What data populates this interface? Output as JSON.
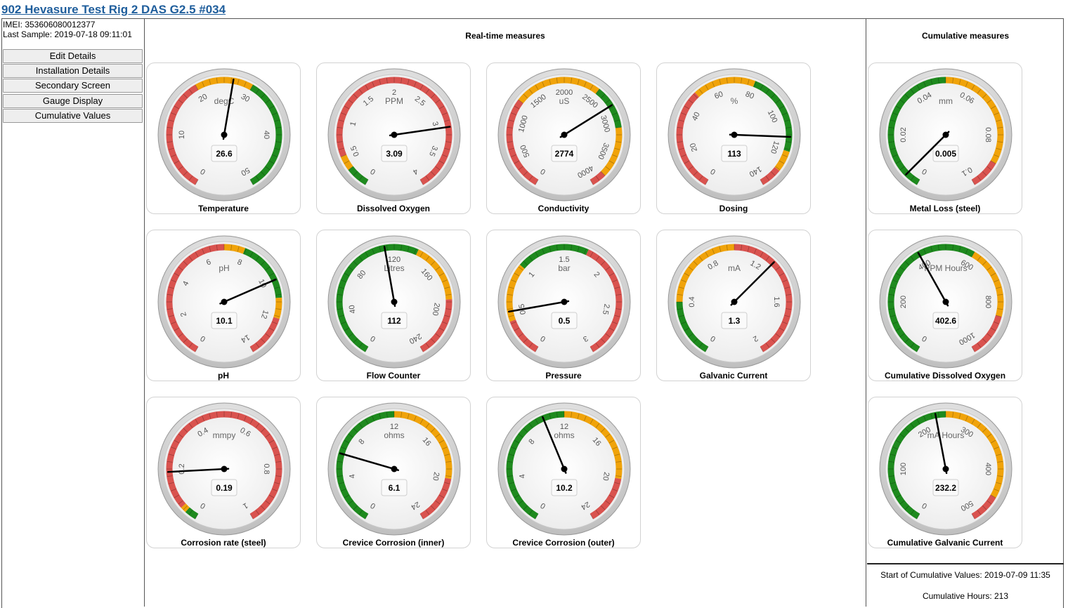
{
  "header": {
    "title": "902 Hevasure Test Rig 2 DAS G2.5 #034"
  },
  "device": {
    "imei": "IMEI: 353606080012377",
    "last_sample": "Last Sample: 2019-07-18 09:11:01"
  },
  "sidebar": {
    "buttons": [
      "Edit Details",
      "Installation Details",
      "Secondary Screen",
      "Gauge Display",
      "Cumulative Values"
    ]
  },
  "sections": {
    "realtime_title": "Real-time measures",
    "cumulative_title": "Cumulative measures"
  },
  "colors": {
    "red": "#d9534f",
    "orange": "#f0a30a",
    "green": "#1e8a1e",
    "title_link": "#1f5e9c"
  },
  "gauges": [
    {
      "name": "Temperature",
      "unit": "degC",
      "min": 0,
      "max": 50,
      "ticks": [
        0,
        10,
        20,
        30,
        40,
        50
      ],
      "value": 26.6,
      "display": "26.6",
      "bands": [
        {
          "from": 0,
          "to": 20,
          "color": "red"
        },
        {
          "from": 20,
          "to": 30,
          "color": "orange"
        },
        {
          "from": 30,
          "to": 50,
          "color": "green"
        }
      ]
    },
    {
      "name": "Dissolved Oxygen",
      "unit": "PPM",
      "min": 0,
      "max": 4,
      "ticks": [
        "0",
        "0.5",
        "1",
        "1.5",
        "2",
        "2.5",
        "3",
        "3.5",
        "4"
      ],
      "value": 3.09,
      "display": "3.09",
      "bands": [
        {
          "from": 0,
          "to": 0.3,
          "color": "green"
        },
        {
          "from": 0.3,
          "to": 0.5,
          "color": "orange"
        },
        {
          "from": 0.5,
          "to": 4,
          "color": "red"
        }
      ]
    },
    {
      "name": "Conductivity",
      "unit": "uS",
      "min": 0,
      "max": 4000,
      "ticks": [
        "0",
        "500",
        "1000",
        "1500",
        "2000",
        "2500",
        "3000",
        "3500",
        "4000"
      ],
      "value": 2774,
      "display": "2774",
      "bands": [
        {
          "from": 0,
          "to": 1300,
          "color": "red"
        },
        {
          "from": 1300,
          "to": 2500,
          "color": "orange"
        },
        {
          "from": 2500,
          "to": 3100,
          "color": "green"
        },
        {
          "from": 3100,
          "to": 3800,
          "color": "orange"
        },
        {
          "from": 3800,
          "to": 4000,
          "color": "red"
        }
      ]
    },
    {
      "name": "Dosing",
      "unit": "%",
      "min": 0,
      "max": 140,
      "ticks": [
        "0",
        "20",
        "40",
        "60",
        "80",
        "100",
        "120",
        "140"
      ],
      "value": 113,
      "display": "113",
      "bands": [
        {
          "from": 0,
          "to": 50,
          "color": "red"
        },
        {
          "from": 50,
          "to": 80,
          "color": "orange"
        },
        {
          "from": 80,
          "to": 120,
          "color": "green"
        },
        {
          "from": 120,
          "to": 130,
          "color": "orange"
        },
        {
          "from": 130,
          "to": 140,
          "color": "red"
        }
      ]
    },
    {
      "name": "Metal Loss (steel)",
      "unit": "mm",
      "min": 0,
      "max": 0.1,
      "ticks": [
        "0",
        "0.02",
        "0.04",
        "0.06",
        "0.08",
        "0.1"
      ],
      "value": 0.005,
      "display": "0.005",
      "bands": [
        {
          "from": 0,
          "to": 0.05,
          "color": "green"
        },
        {
          "from": 0.05,
          "to": 0.09,
          "color": "orange"
        },
        {
          "from": 0.09,
          "to": 0.1,
          "color": "red"
        }
      ]
    },
    {
      "name": "pH",
      "unit": "pH",
      "min": 0,
      "max": 14,
      "ticks": [
        "0",
        "2",
        "4",
        "6",
        "8",
        "10",
        "12",
        "14"
      ],
      "value": 10.1,
      "display": "10.1",
      "bands": [
        {
          "from": 0,
          "to": 7,
          "color": "red"
        },
        {
          "from": 7,
          "to": 8,
          "color": "orange"
        },
        {
          "from": 8,
          "to": 11,
          "color": "green"
        },
        {
          "from": 11,
          "to": 12,
          "color": "orange"
        },
        {
          "from": 12,
          "to": 14,
          "color": "red"
        }
      ]
    },
    {
      "name": "Flow Counter",
      "unit": "Litres",
      "min": 0,
      "max": 240,
      "ticks": [
        "0",
        "40",
        "80",
        "120",
        "160",
        "200",
        "240"
      ],
      "value": 112,
      "display": "112",
      "bands": [
        {
          "from": 0,
          "to": 140,
          "color": "green"
        },
        {
          "from": 140,
          "to": 190,
          "color": "orange"
        },
        {
          "from": 190,
          "to": 240,
          "color": "red"
        }
      ]
    },
    {
      "name": "Pressure",
      "unit": "bar",
      "min": 0,
      "max": 3,
      "ticks": [
        "0",
        "0.5",
        "1",
        "1.5",
        "2",
        "2.5",
        "3"
      ],
      "value": 0.5,
      "display": "0.5",
      "bands": [
        {
          "from": 0,
          "to": 0.4,
          "color": "red"
        },
        {
          "from": 0.4,
          "to": 1,
          "color": "orange"
        },
        {
          "from": 1,
          "to": 1.75,
          "color": "green"
        },
        {
          "from": 1.75,
          "to": 3,
          "color": "red"
        }
      ]
    },
    {
      "name": "Galvanic Current",
      "unit": "mA",
      "min": 0,
      "max": 2,
      "ticks": [
        "0",
        "0.4",
        "0.8",
        "1.2",
        "1.6",
        "2"
      ],
      "value": 1.3,
      "display": "1.3",
      "bands": [
        {
          "from": 0,
          "to": 0.4,
          "color": "green"
        },
        {
          "from": 0.4,
          "to": 1,
          "color": "orange"
        },
        {
          "from": 1,
          "to": 2,
          "color": "red"
        }
      ]
    },
    {
      "name": "Cumulative Dissolved Oxygen",
      "unit": "PPM Hours",
      "min": 0,
      "max": 1000,
      "ticks": [
        "0",
        "200",
        "400",
        "600",
        "800",
        "1000"
      ],
      "value": 402.6,
      "display": "402.6",
      "bands": [
        {
          "from": 0,
          "to": 600,
          "color": "green"
        },
        {
          "from": 600,
          "to": 850,
          "color": "orange"
        },
        {
          "from": 850,
          "to": 1000,
          "color": "red"
        }
      ]
    },
    {
      "name": "Corrosion rate (steel)",
      "unit": "mmpy",
      "min": 0,
      "max": 1,
      "ticks": [
        "0",
        "0.2",
        "0.4",
        "0.6",
        "0.8",
        "1"
      ],
      "value": 0.19,
      "display": "0.19",
      "bands": [
        {
          "from": 0,
          "to": 0.04,
          "color": "green"
        },
        {
          "from": 0.04,
          "to": 0.06,
          "color": "orange"
        },
        {
          "from": 0.06,
          "to": 1,
          "color": "red"
        }
      ]
    },
    {
      "name": "Crevice Corrosion (inner)",
      "unit": "ohms",
      "min": 0,
      "max": 24,
      "ticks": [
        "0",
        "4",
        "8",
        "12",
        "16",
        "20",
        "24"
      ],
      "value": 6.1,
      "display": "6.1",
      "bands": [
        {
          "from": 0,
          "to": 12,
          "color": "green"
        },
        {
          "from": 12,
          "to": 20,
          "color": "orange"
        },
        {
          "from": 20,
          "to": 24,
          "color": "red"
        }
      ]
    },
    {
      "name": "Crevice Corrosion (outer)",
      "unit": "ohms",
      "min": 0,
      "max": 24,
      "ticks": [
        "0",
        "4",
        "8",
        "12",
        "16",
        "20",
        "24"
      ],
      "value": 10.2,
      "display": "10.2",
      "bands": [
        {
          "from": 0,
          "to": 12,
          "color": "green"
        },
        {
          "from": 12,
          "to": 20,
          "color": "orange"
        },
        {
          "from": 20,
          "to": 24,
          "color": "red"
        }
      ]
    },
    {
      "name": "Cumulative Galvanic Current",
      "unit": "mA Hours",
      "min": 0,
      "max": 500,
      "ticks": [
        "0",
        "100",
        "200",
        "300",
        "400",
        "500"
      ],
      "value": 232.2,
      "display": "232.2",
      "bands": [
        {
          "from": 0,
          "to": 250,
          "color": "green"
        },
        {
          "from": 250,
          "to": 450,
          "color": "orange"
        },
        {
          "from": 450,
          "to": 500,
          "color": "red"
        }
      ]
    }
  ],
  "cumulative_footer": {
    "start": "Start of Cumulative Values: 2019-07-09 11:35",
    "hours": "Cumulative Hours: 213"
  }
}
